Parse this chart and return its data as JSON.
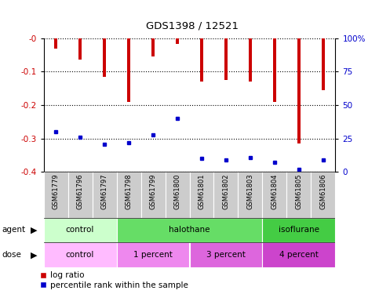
{
  "title": "GDS1398 / 12521",
  "samples": [
    "GSM61779",
    "GSM61796",
    "GSM61797",
    "GSM61798",
    "GSM61799",
    "GSM61800",
    "GSM61801",
    "GSM61802",
    "GSM61803",
    "GSM61804",
    "GSM61805",
    "GSM61806"
  ],
  "log_ratios": [
    -0.03,
    -0.065,
    -0.115,
    -0.19,
    -0.055,
    -0.018,
    -0.13,
    -0.125,
    -0.13,
    -0.19,
    -0.315,
    -0.155
  ],
  "percentile_ranks": [
    30,
    26,
    21,
    22,
    28,
    40,
    10,
    9,
    11,
    7,
    2,
    9
  ],
  "ymin": -0.4,
  "ymax": 0.0,
  "yticks": [
    0.0,
    -0.1,
    -0.2,
    -0.3,
    -0.4
  ],
  "ytick_labels": [
    "-0",
    "-0.1",
    "-0.2",
    "-0.3",
    "-0.4"
  ],
  "right_yticks": [
    0,
    25,
    50,
    75,
    100
  ],
  "right_ytick_labels": [
    "0",
    "25",
    "50",
    "75",
    "100%"
  ],
  "bar_color": "#cc0000",
  "dot_color": "#0000cc",
  "agent_groups": [
    {
      "label": "control",
      "start": 0,
      "end": 3,
      "color": "#ccffcc"
    },
    {
      "label": "halothane",
      "start": 3,
      "end": 9,
      "color": "#66dd66"
    },
    {
      "label": "isoflurane",
      "start": 9,
      "end": 12,
      "color": "#44cc44"
    }
  ],
  "dose_groups": [
    {
      "label": "control",
      "start": 0,
      "end": 3,
      "color": "#ffbbff"
    },
    {
      "label": "1 percent",
      "start": 3,
      "end": 6,
      "color": "#ee88ee"
    },
    {
      "label": "3 percent",
      "start": 6,
      "end": 9,
      "color": "#dd66dd"
    },
    {
      "label": "4 percent",
      "start": 9,
      "end": 12,
      "color": "#cc44cc"
    }
  ],
  "agent_label": "agent",
  "dose_label": "dose",
  "legend_log_ratio": "log ratio",
  "legend_percentile": "percentile rank within the sample",
  "bar_width": 0.12,
  "left_ylabel_color": "#cc0000",
  "right_ylabel_color": "#0000cc",
  "tick_label_bg": "#cccccc",
  "fig_width": 4.83,
  "fig_height": 3.75,
  "dpi": 100
}
